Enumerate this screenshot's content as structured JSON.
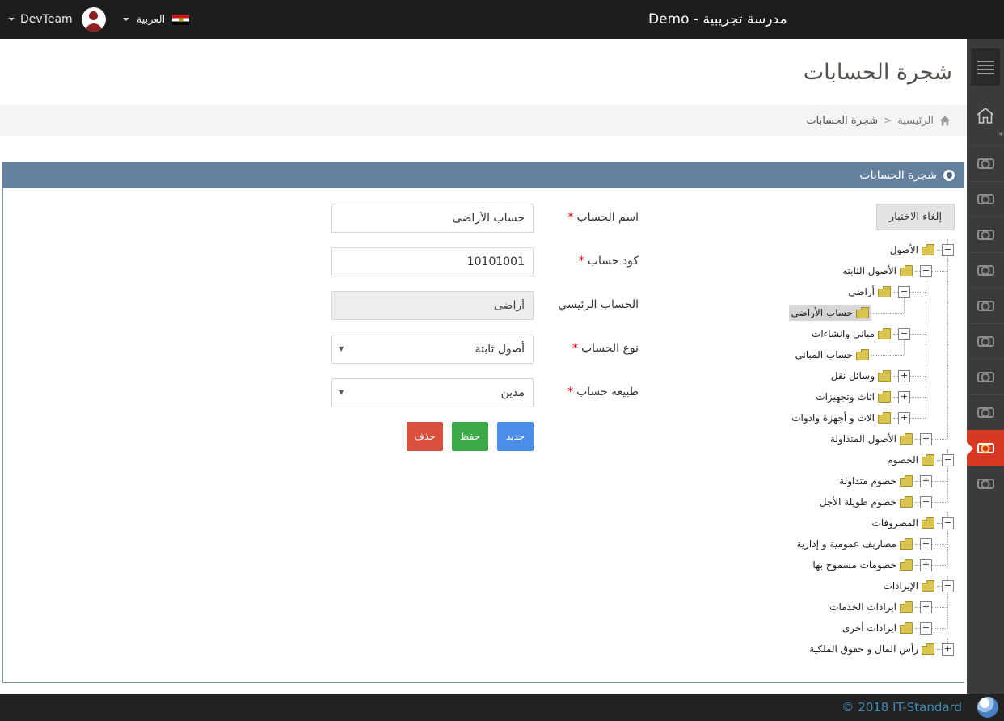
{
  "topbar": {
    "team_label": "DevTeam",
    "language_label": "العربية",
    "site_title": "مدرسة تجريبية - Demo"
  },
  "page": {
    "title": "شجرة الحسابات",
    "breadcrumb_home": "الرئيسية",
    "breadcrumb_separator": ">",
    "breadcrumb_current": "شجرة الحسابات"
  },
  "panel": {
    "title": "شجرة الحسابات",
    "cancel_button": "إلغاء الاختيار"
  },
  "form": {
    "fields": [
      {
        "name": "account-name",
        "label": "اسم الحساب",
        "required": true,
        "type": "text",
        "value": "حساب الأراضى",
        "disabled": false
      },
      {
        "name": "account-code",
        "label": "كود حساب",
        "required": true,
        "type": "text",
        "value": "10101001",
        "disabled": false
      },
      {
        "name": "parent-account",
        "label": "الحساب الرئيسي",
        "required": false,
        "type": "text",
        "value": "أراضى",
        "disabled": true
      },
      {
        "name": "account-type",
        "label": "نوع الحساب",
        "required": true,
        "type": "select",
        "value": "أصول ثابتة",
        "disabled": false
      },
      {
        "name": "account-nature",
        "label": "طبيعة حساب",
        "required": true,
        "type": "select",
        "value": "مدين",
        "disabled": false
      }
    ],
    "buttons": [
      {
        "name": "new-button",
        "label": "جديد",
        "color": "#4a8ee8"
      },
      {
        "name": "save-button",
        "label": "حفظ",
        "color": "#3caa49"
      },
      {
        "name": "delete-button",
        "label": "حذف",
        "color": "#d9503f"
      }
    ]
  },
  "tree": {
    "nodes": [
      {
        "label": "الأصول",
        "depth": 0,
        "exp": "minus",
        "selected": false
      },
      {
        "label": "الأصول الثابته",
        "depth": 1,
        "exp": "minus",
        "selected": false
      },
      {
        "label": "أراضى",
        "depth": 2,
        "exp": "minus",
        "selected": false
      },
      {
        "label": "حساب الأراضى",
        "depth": 3,
        "exp": "leaf",
        "selected": true
      },
      {
        "label": "مبانى وانشاءات",
        "depth": 2,
        "exp": "minus",
        "selected": false
      },
      {
        "label": "حساب المبانى",
        "depth": 3,
        "exp": "leaf",
        "selected": false
      },
      {
        "label": "وسائل نقل",
        "depth": 2,
        "exp": "plus",
        "selected": false
      },
      {
        "label": "اثاث وتجهيزات",
        "depth": 2,
        "exp": "plus",
        "selected": false
      },
      {
        "label": "الات و أجهزة وادوات",
        "depth": 2,
        "exp": "plus",
        "selected": false
      },
      {
        "label": "الأصول المتداولة",
        "depth": 1,
        "exp": "plus",
        "selected": false
      },
      {
        "label": "الخصوم",
        "depth": 0,
        "exp": "minus",
        "selected": false
      },
      {
        "label": "خصوم متداولة",
        "depth": 1,
        "exp": "plus",
        "selected": false
      },
      {
        "label": "خصوم طويلة الأجل",
        "depth": 1,
        "exp": "plus",
        "selected": false
      },
      {
        "label": "المصروفات",
        "depth": 0,
        "exp": "minus",
        "selected": false
      },
      {
        "label": "مصاريف عمومية و إدارية",
        "depth": 1,
        "exp": "plus",
        "selected": false
      },
      {
        "label": "خصومات مسموح بها",
        "depth": 1,
        "exp": "plus",
        "selected": false
      },
      {
        "label": "الإيرادات",
        "depth": 0,
        "exp": "minus",
        "selected": false
      },
      {
        "label": "ايرادات الخدمات",
        "depth": 1,
        "exp": "plus",
        "selected": false
      },
      {
        "label": "ايرادات أخرى",
        "depth": 1,
        "exp": "plus",
        "selected": false
      },
      {
        "label": "رأس المال و حقوق الملكية",
        "depth": 0,
        "exp": "plus",
        "selected": false
      }
    ],
    "expander_minus": "−",
    "expander_plus": "+"
  },
  "sidebar": {
    "money_items_count": 10,
    "active_index": 8,
    "home_mark": "*"
  },
  "footer": {
    "copyright": "© 2018 IT-Standard"
  },
  "colors": {
    "topbar_bg": "#1d1d1d",
    "sidebar_bg": "#3b3b3b",
    "sidebar_active": "#d73925",
    "panel_header_bg": "#64809e",
    "footer_bg": "#222222",
    "footer_text": "#3c8dbc",
    "folder": "#d9c351",
    "required_asterisk": "#dd0000",
    "selected_node_bg": "#d6d6d6",
    "button_new": "#4a8ee8",
    "button_save": "#3caa49",
    "button_delete": "#d9503f"
  }
}
